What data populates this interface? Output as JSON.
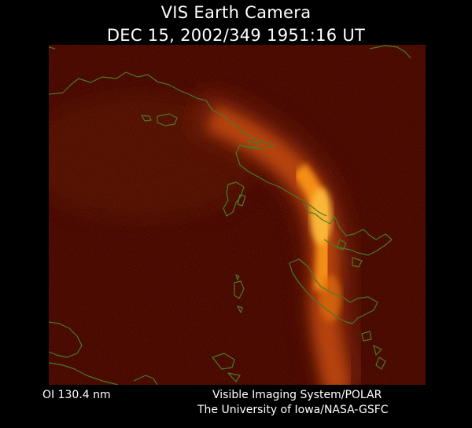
{
  "header": {
    "title_line_1": "VIS Earth Camera",
    "title_line_2": "DEC 15, 2002/349 1951:16 UT"
  },
  "image": {
    "description_icon": "auroral-oval-image",
    "background_color": "#430600",
    "aurora_color": "#ffb020",
    "coastline_color": "#4a7a26"
  },
  "footer": {
    "filter_label": "OI  130.4 nm",
    "credit_line_1": "Visible Imaging System/POLAR",
    "credit_line_2": "The University of Iowa/NASA-GSFC"
  }
}
